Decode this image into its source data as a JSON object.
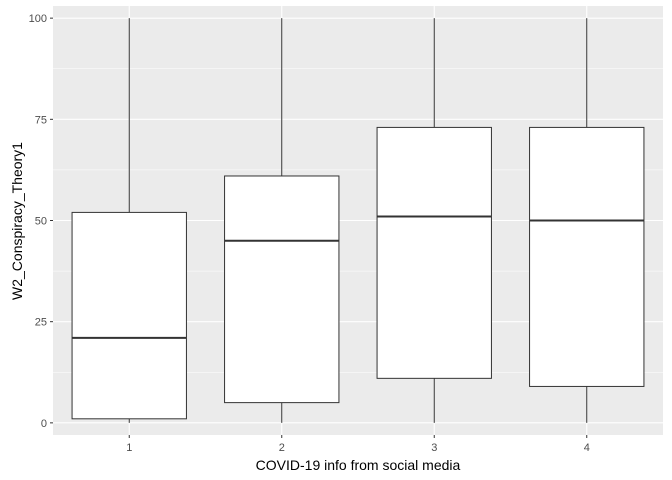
{
  "chart_data": {
    "type": "boxplot",
    "title": "",
    "xlabel": "COVID-19 info from social media",
    "ylabel": "W2_Conspiracy_Theory1",
    "categories": [
      "1",
      "2",
      "3",
      "4"
    ],
    "ylim": [
      -3,
      103
    ],
    "yticks": [
      0,
      25,
      50,
      75,
      100
    ],
    "ytick_labels": [
      "0",
      "25",
      "50",
      "75",
      "100"
    ],
    "boxes": [
      {
        "category": "1",
        "min": 0,
        "q1": 1,
        "median": 21,
        "q3": 52,
        "max": 100
      },
      {
        "category": "2",
        "min": 0,
        "q1": 5,
        "median": 45,
        "q3": 61,
        "max": 100
      },
      {
        "category": "3",
        "min": 0,
        "q1": 11,
        "median": 51,
        "q3": 73,
        "max": 100
      },
      {
        "category": "4",
        "min": 0,
        "q1": 9,
        "median": 50,
        "q3": 73,
        "max": 100
      }
    ],
    "grid": true,
    "colors": {
      "panel": "#ebebeb",
      "grid_major": "#ffffff",
      "box_fill": "#ffffff",
      "box_stroke": "#333333",
      "tick_text": "#4d4d4d",
      "title_text": "#000000"
    }
  }
}
